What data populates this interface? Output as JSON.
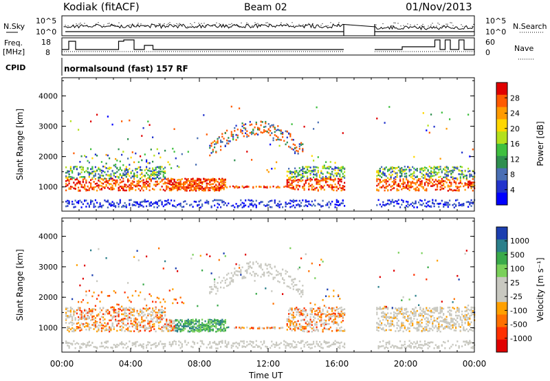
{
  "header": {
    "station": "Kodiak (fitACF)",
    "beam": "Beam 02",
    "date": "01/Nov/2013"
  },
  "sky_panel": {
    "label": "N.Sky",
    "right_label": "N.Search",
    "tick_top": "10^5",
    "tick_bottom": "10^0"
  },
  "freq_panel": {
    "label_line1": "Freq.",
    "label_line2": "[MHz]",
    "tick_top": "18",
    "tick_bottom": "8",
    "right_tick_top": "60",
    "right_tick_bottom": "0",
    "right_label": "Nave"
  },
  "cpid": {
    "label": "CPID",
    "value": "normalsound (fast) 157 RF"
  },
  "chart_data": [
    {
      "type": "heatmap",
      "panel": "power",
      "ylabel": "Slant Range [km]",
      "xlabel": "Time UT",
      "yticks": [
        "4000",
        "3000",
        "2000",
        "1000"
      ],
      "xticks": [
        "00:00",
        "04:00",
        "08:00",
        "12:00",
        "16:00",
        "20:00",
        "00:00"
      ],
      "ylim": [
        200,
        4600
      ],
      "xlim": [
        0,
        24
      ],
      "colorbar": {
        "label": "Power [dB]",
        "ticks": [
          "28",
          "24",
          "20",
          "16",
          "12",
          "8",
          "4"
        ],
        "colors": [
          "#e00000",
          "#ff5a00",
          "#ff9a00",
          "#ffd700",
          "#b4e01c",
          "#3fbf3f",
          "#2f8f4f",
          "#4a6fb4",
          "#2233cc",
          "#0000ff"
        ]
      },
      "data_gap_hours": [
        16.4,
        18.2
      ]
    },
    {
      "type": "heatmap",
      "panel": "velocity",
      "ylabel": "Slant Range [km]",
      "xlabel": "Time UT",
      "yticks": [
        "4000",
        "3000",
        "2000",
        "1000"
      ],
      "xticks": [
        "00:00",
        "04:00",
        "08:00",
        "12:00",
        "16:00",
        "20:00",
        "00:00"
      ],
      "ylim": [
        200,
        4600
      ],
      "xlim": [
        0,
        24
      ],
      "colorbar": {
        "label": "Velocity [m s⁻¹]",
        "ticks": [
          "1000",
          "500",
          "100",
          "25",
          "-25",
          "-100",
          "-500",
          "-1000"
        ],
        "colors": [
          "#1c3fb0",
          "#2b7f8a",
          "#3aaa4a",
          "#7ad05a",
          "#c8c8c0",
          "#c8c8c0",
          "#ffa000",
          "#ff7000",
          "#ff3000",
          "#e00000"
        ]
      },
      "data_gap_hours": [
        16.4,
        18.2
      ]
    }
  ]
}
